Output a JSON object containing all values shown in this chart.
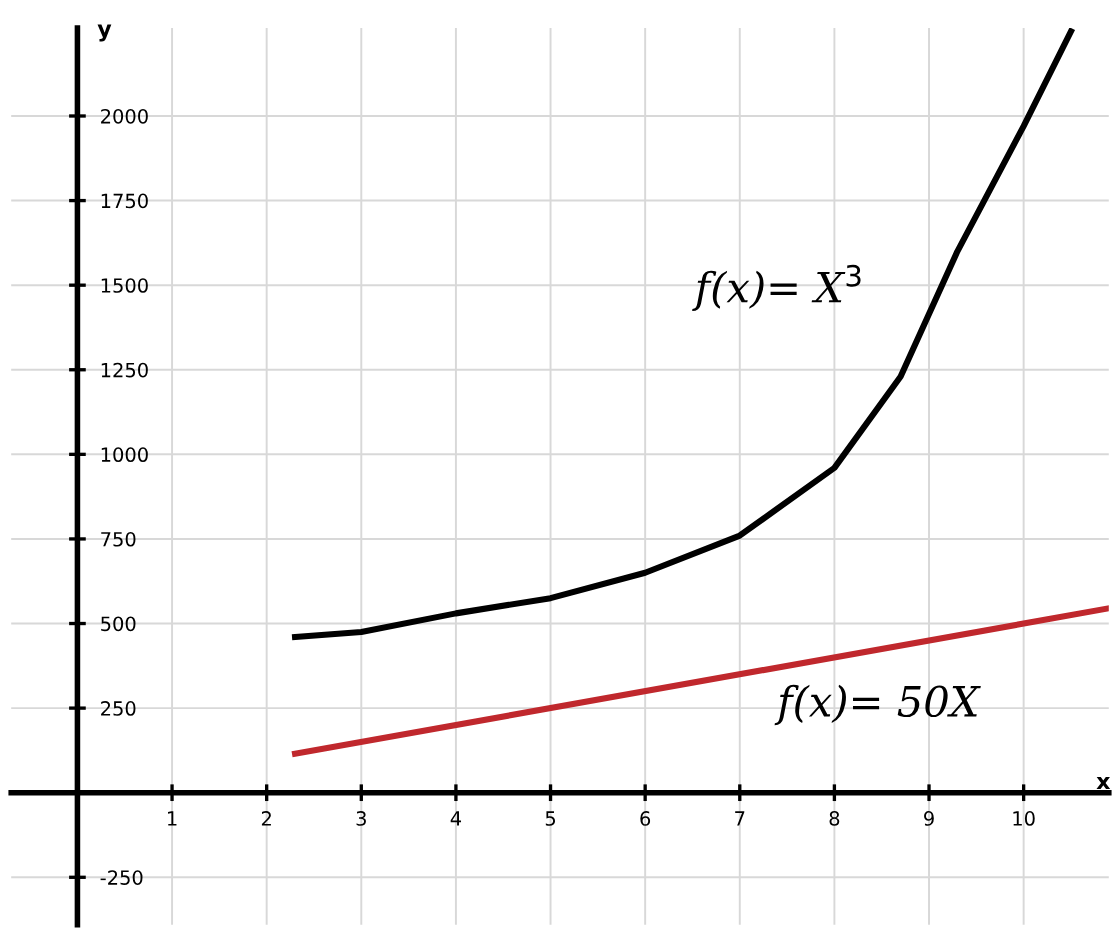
{
  "chart_data": {
    "type": "line",
    "xlabel": "x",
    "ylabel": "y",
    "xlim": [
      -0.7,
      10.9
    ],
    "ylim": [
      -390,
      2260
    ],
    "xticks": [
      1,
      2,
      3,
      4,
      5,
      6,
      7,
      8,
      9,
      10
    ],
    "yticks": [
      -250,
      250,
      500,
      750,
      1000,
      1250,
      1500,
      1750,
      2000
    ],
    "grid": true,
    "marker": "none",
    "line_style": "solid",
    "series": [
      {
        "color": "#000000",
        "x": [
          2.3,
          3,
          4,
          5,
          6,
          7,
          8,
          8.7,
          9.3,
          10,
          10.5
        ],
        "values": [
          460,
          475,
          530,
          575,
          650,
          760,
          960,
          1230,
          1600,
          1970,
          2250
        ]
      },
      {
        "color": "#c0282d",
        "x": [
          2.3,
          10.9
        ],
        "values": [
          115,
          545
        ]
      }
    ],
    "annotations": [
      "f(x)= X$^{3}$",
      "f(x)= 50X"
    ]
  }
}
